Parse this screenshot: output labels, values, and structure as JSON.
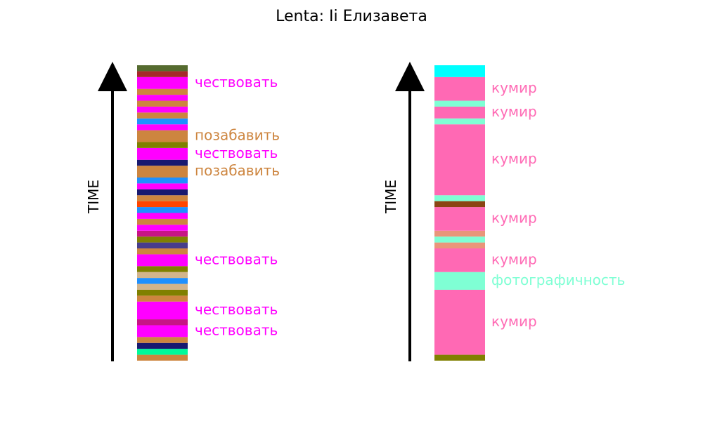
{
  "chart_data": {
    "type": "bar",
    "title": "Lenta: Ii Елизавета",
    "ylabel": "TIME",
    "ylim": [
      0,
      50
    ],
    "panels": [
      {
        "name": "left",
        "segments": [
          {
            "start": 0,
            "end": 1,
            "color": "#cd853f"
          },
          {
            "start": 1,
            "end": 2,
            "color": "#00fa9a"
          },
          {
            "start": 2,
            "end": 3,
            "color": "#191970"
          },
          {
            "start": 3,
            "end": 4,
            "color": "#cd853f"
          },
          {
            "start": 4,
            "end": 6,
            "color": "#ff00ff",
            "label": "чествовать"
          },
          {
            "start": 6,
            "end": 7,
            "color": "#c71585"
          },
          {
            "start": 7,
            "end": 10,
            "color": "#ff00ff",
            "label": "чествовать"
          },
          {
            "start": 10,
            "end": 11,
            "color": "#cd853f"
          },
          {
            "start": 11,
            "end": 12,
            "color": "#808000"
          },
          {
            "start": 12,
            "end": 13,
            "color": "#d2b48c"
          },
          {
            "start": 13,
            "end": 14,
            "color": "#1e90ff"
          },
          {
            "start": 14,
            "end": 15,
            "color": "#d2b48c"
          },
          {
            "start": 15,
            "end": 16,
            "color": "#808000"
          },
          {
            "start": 16,
            "end": 18,
            "color": "#ff00ff",
            "label": "чествовать"
          },
          {
            "start": 18,
            "end": 19,
            "color": "#cd853f"
          },
          {
            "start": 19,
            "end": 20,
            "color": "#483d8b"
          },
          {
            "start": 20,
            "end": 21,
            "color": "#808000"
          },
          {
            "start": 21,
            "end": 22,
            "color": "#c71585"
          },
          {
            "start": 22,
            "end": 23,
            "color": "#ff00ff"
          },
          {
            "start": 23,
            "end": 24,
            "color": "#cd853f"
          },
          {
            "start": 24,
            "end": 25,
            "color": "#ff00ff"
          },
          {
            "start": 25,
            "end": 26,
            "color": "#1e90ff"
          },
          {
            "start": 26,
            "end": 27,
            "color": "#ff4500"
          },
          {
            "start": 27,
            "end": 28,
            "color": "#cd853f"
          },
          {
            "start": 28,
            "end": 29,
            "color": "#191970"
          },
          {
            "start": 29,
            "end": 30,
            "color": "#ff00ff"
          },
          {
            "start": 30,
            "end": 31,
            "color": "#1e90ff"
          },
          {
            "start": 31,
            "end": 33,
            "color": "#cd853f",
            "label": "позабавить"
          },
          {
            "start": 33,
            "end": 34,
            "color": "#191970"
          },
          {
            "start": 34,
            "end": 36,
            "color": "#ff00ff",
            "label": "чествовать"
          },
          {
            "start": 36,
            "end": 37,
            "color": "#808000"
          },
          {
            "start": 37,
            "end": 39,
            "color": "#cd853f",
            "label": "позабавить"
          },
          {
            "start": 39,
            "end": 40,
            "color": "#ff00ff"
          },
          {
            "start": 40,
            "end": 41,
            "color": "#1e90ff"
          },
          {
            "start": 41,
            "end": 42,
            "color": "#cd853f"
          },
          {
            "start": 42,
            "end": 43,
            "color": "#ff00ff"
          },
          {
            "start": 43,
            "end": 44,
            "color": "#cd853f"
          },
          {
            "start": 44,
            "end": 45,
            "color": "#ff00ff"
          },
          {
            "start": 45,
            "end": 46,
            "color": "#cd853f"
          },
          {
            "start": 46,
            "end": 48,
            "color": "#ff00ff",
            "label": "чествовать"
          },
          {
            "start": 48,
            "end": 49,
            "color": "#a52a2a"
          },
          {
            "start": 49,
            "end": 50,
            "color": "#556b2f"
          }
        ]
      },
      {
        "name": "right",
        "segments": [
          {
            "start": 0,
            "end": 1,
            "color": "#808000"
          },
          {
            "start": 1,
            "end": 12,
            "color": "#ff69b4",
            "label": "кумир"
          },
          {
            "start": 12,
            "end": 15,
            "color": "#7fffd4",
            "label": "фотографичность"
          },
          {
            "start": 15,
            "end": 19,
            "color": "#ff69b4",
            "label": "кумир"
          },
          {
            "start": 19,
            "end": 20,
            "color": "#e9967a"
          },
          {
            "start": 20,
            "end": 21,
            "color": "#7fffd4"
          },
          {
            "start": 21,
            "end": 22,
            "color": "#e9967a"
          },
          {
            "start": 22,
            "end": 26,
            "color": "#ff69b4",
            "label": "кумир"
          },
          {
            "start": 26,
            "end": 27,
            "color": "#8b4513"
          },
          {
            "start": 27,
            "end": 28,
            "color": "#7fffd4"
          },
          {
            "start": 28,
            "end": 40,
            "color": "#ff69b4",
            "label": "кумир"
          },
          {
            "start": 40,
            "end": 41,
            "color": "#7fffd4"
          },
          {
            "start": 41,
            "end": 43,
            "color": "#ff69b4",
            "label": "кумир"
          },
          {
            "start": 43,
            "end": 44,
            "color": "#7fffd4"
          },
          {
            "start": 44,
            "end": 48,
            "color": "#ff69b4",
            "label": "кумир"
          },
          {
            "start": 48,
            "end": 50,
            "color": "#00ffff"
          }
        ]
      }
    ]
  }
}
